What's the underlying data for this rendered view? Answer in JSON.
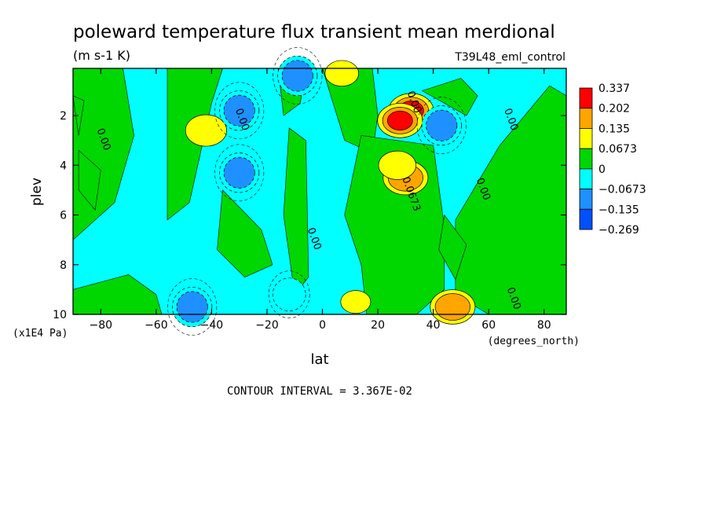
{
  "chart_data": {
    "type": "heatmap",
    "title": "poleward temperature flux transient mean merdional",
    "units": "(m s-1 K)",
    "experiment": "T39L48_eml_control",
    "xlabel": "lat",
    "x_units": "(degrees_north)",
    "ylabel": "plev",
    "y_units": "(x1E4 Pa)",
    "xlim": [
      -90,
      88
    ],
    "ylim": [
      10,
      0.1
    ],
    "x_ticks": [
      -80,
      -60,
      -40,
      -20,
      0,
      20,
      40,
      60,
      80
    ],
    "y_ticks": [
      2,
      4,
      6,
      8,
      10
    ],
    "contour_interval_text": "CONTOUR INTERVAL = 3.367E-02",
    "colorbar": {
      "labels": [
        "0.337",
        "0.202",
        "0.135",
        "0.0673",
        "0",
        "−0.0673",
        "−0.135",
        "−0.269"
      ],
      "colors": [
        "#ff0000",
        "#ffa500",
        "#ffff00",
        "#00d700",
        "#00ffff",
        "#1e90ff",
        "#0050ff"
      ]
    },
    "contour_labels": [
      {
        "text": "0.00",
        "lat": -80,
        "plev": 3.0
      },
      {
        "text": "0.00",
        "lat": -30,
        "plev": 2.2
      },
      {
        "text": "0.00",
        "lat": -4,
        "plev": 7.0
      },
      {
        "text": "0.00",
        "lat": 32,
        "plev": 1.5
      },
      {
        "text": "0.0673",
        "lat": 31,
        "plev": 5.2
      },
      {
        "text": "0.00",
        "lat": 57,
        "plev": 5.0
      },
      {
        "text": "0.00",
        "lat": 67,
        "plev": 2.2
      },
      {
        "text": "0.00",
        "lat": 68,
        "plev": 9.4
      }
    ],
    "features": [
      {
        "kind": "max",
        "lat": 32,
        "plev": 1.8,
        "value": 0.337
      },
      {
        "kind": "max",
        "lat": 28,
        "plev": 2.2,
        "value": 0.202
      },
      {
        "kind": "max",
        "lat": 30,
        "plev": 4.5,
        "value": 0.135
      },
      {
        "kind": "max",
        "lat": 27,
        "plev": 4.0,
        "value": 0.1
      },
      {
        "kind": "max",
        "lat": -42,
        "plev": 2.6,
        "value": 0.11
      },
      {
        "kind": "max",
        "lat": 47,
        "plev": 9.7,
        "value": 0.13
      },
      {
        "kind": "max",
        "lat": 7,
        "plev": 0.3,
        "value": 0.09
      },
      {
        "kind": "max",
        "lat": 12,
        "plev": 9.5,
        "value": 0.08
      },
      {
        "kind": "min",
        "lat": -30,
        "plev": 1.8,
        "value": -0.14
      },
      {
        "kind": "min",
        "lat": -30,
        "plev": 4.3,
        "value": -0.14
      },
      {
        "kind": "min",
        "lat": 43,
        "plev": 2.4,
        "value": -0.13
      },
      {
        "kind": "min",
        "lat": -47,
        "plev": 9.7,
        "value": -0.14
      },
      {
        "kind": "min",
        "lat": -9,
        "plev": 0.4,
        "value": -0.13
      },
      {
        "kind": "min",
        "lat": -12,
        "plev": 9.2,
        "value": -0.1
      }
    ]
  }
}
